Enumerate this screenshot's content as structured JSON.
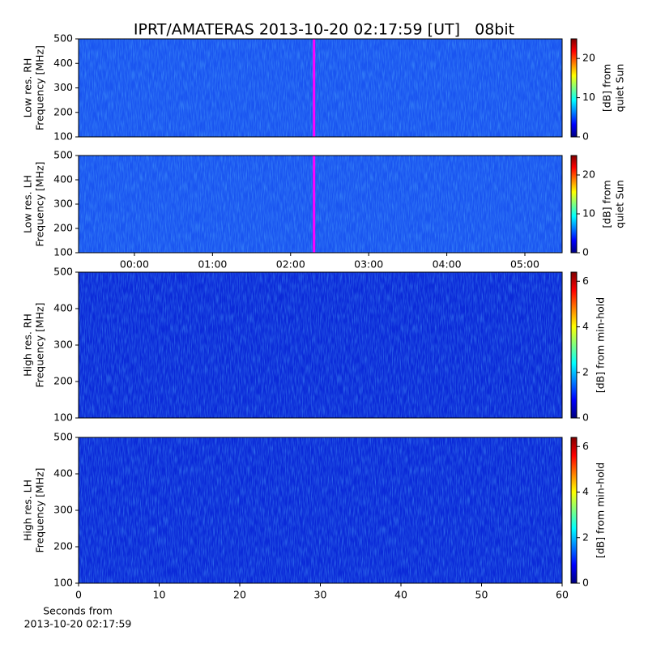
{
  "chart_data": [
    {
      "type": "heatmap",
      "title": "IPRT/AMATERAS 2013-10-20 02:17:59 [UT]   08bit",
      "ylabel": [
        "Low res. RH",
        "Frequency [MHz]"
      ],
      "ylim": [
        100,
        500
      ],
      "yticks": [
        100,
        200,
        300,
        400,
        500
      ],
      "xlim": [
        -0.715,
        5.477
      ],
      "markers": [
        {
          "x": 2.3,
          "color": "#ff00ff"
        }
      ],
      "colorbar": {
        "label": [
          "[dB] from",
          "quiet Sun"
        ],
        "lim": [
          0,
          25
        ],
        "ticks": [
          0,
          10,
          20
        ],
        "colormap": "jet"
      }
    },
    {
      "type": "heatmap",
      "ylabel": [
        "Low res. LH",
        "Frequency [MHz]"
      ],
      "ylim": [
        100,
        500
      ],
      "yticks": [
        100,
        200,
        300,
        400,
        500
      ],
      "xlim": [
        -0.715,
        5.477
      ],
      "xticks": [
        {
          "value": 0,
          "label": "00:00"
        },
        {
          "value": 1,
          "label": "01:00"
        },
        {
          "value": 2,
          "label": "02:00"
        },
        {
          "value": 3,
          "label": "03:00"
        },
        {
          "value": 4,
          "label": "04:00"
        },
        {
          "value": 5,
          "label": "05:00"
        }
      ],
      "markers": [
        {
          "x": 2.3,
          "color": "#ff00ff"
        }
      ],
      "colorbar": {
        "label": [
          "[dB] from",
          "quiet Sun"
        ],
        "lim": [
          0,
          25
        ],
        "ticks": [
          0,
          10,
          20
        ],
        "colormap": "jet"
      }
    },
    {
      "type": "heatmap",
      "ylabel": [
        "High res. RH",
        "Frequency [MHz]"
      ],
      "ylim": [
        100,
        500
      ],
      "yticks": [
        100,
        200,
        300,
        400,
        500
      ],
      "xlim": [
        0,
        60
      ],
      "colorbar": {
        "label": [
          "[dB] from min-hold"
        ],
        "lim": [
          0,
          6.4
        ],
        "ticks": [
          0,
          2,
          4,
          6
        ],
        "colormap": "jet"
      }
    },
    {
      "type": "heatmap",
      "ylabel": [
        "High res. LH",
        "Frequency [MHz]"
      ],
      "ylim": [
        100,
        500
      ],
      "yticks": [
        100,
        200,
        300,
        400,
        500
      ],
      "xlim": [
        0,
        60
      ],
      "xticks": [
        0,
        10,
        20,
        30,
        40,
        50,
        60
      ],
      "xlabel": [
        "Seconds from",
        "2013-10-20 02:17:59"
      ],
      "colorbar": {
        "label": [
          "[dB] from min-hold"
        ],
        "lim": [
          0,
          6.4
        ],
        "ticks": [
          0,
          2,
          4,
          6
        ],
        "colormap": "jet"
      }
    }
  ]
}
